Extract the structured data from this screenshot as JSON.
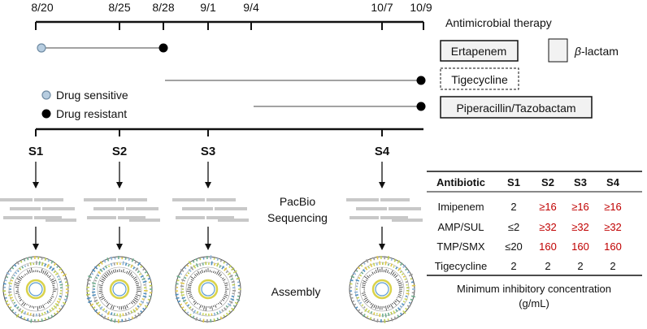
{
  "timeline": {
    "dates": [
      "8/20",
      "8/25",
      "8/28",
      "9/1",
      "9/4",
      "10/7",
      "10/9"
    ],
    "therapy_title": "Antimicrobial therapy"
  },
  "therapies": [
    {
      "name": "Ertapenem",
      "class": "beta-lactam",
      "start": "8/20",
      "end": "8/28",
      "start_status": "sensitive",
      "end_status": "resistant"
    },
    {
      "name": "Tigecycline",
      "class": "other",
      "start": "8/28",
      "end": "10/9",
      "end_status": "resistant"
    },
    {
      "name": "Piperacillin/Tazobactam",
      "class": "beta-lactam",
      "start": "9/4",
      "end": "10/9",
      "end_status": "resistant"
    }
  ],
  "legend": {
    "beta_lactam_symbol": "β",
    "beta_lactam_label": "-lactam",
    "sensitive_label": "Drug sensitive",
    "resistant_label": "Drug resistant"
  },
  "samples": [
    "S1",
    "S2",
    "S3",
    "S4"
  ],
  "steps": {
    "sequencing_line1": "PacBio",
    "sequencing_line2": "Sequencing",
    "assembly": "Assembly"
  },
  "mic_table": {
    "headers": [
      "Antibiotic",
      "S1",
      "S2",
      "S3",
      "S4"
    ],
    "rows": [
      {
        "antibiotic": "Imipenem",
        "values": [
          "2",
          "≥16",
          "≥16",
          "≥16"
        ],
        "resistant": [
          false,
          true,
          true,
          true
        ]
      },
      {
        "antibiotic": "AMP/SUL",
        "values": [
          "≤2",
          "≥32",
          "≥32",
          "≥32"
        ],
        "resistant": [
          false,
          true,
          true,
          true
        ]
      },
      {
        "antibiotic": "TMP/SMX",
        "values": [
          "≤20",
          "160",
          "160",
          "160"
        ],
        "resistant": [
          false,
          true,
          true,
          true
        ]
      },
      {
        "antibiotic": "Tigecycline",
        "values": [
          "2",
          "2",
          "2",
          "2"
        ],
        "resistant": [
          false,
          false,
          false,
          false
        ]
      }
    ],
    "caption_line1": "Minimum inhibitory concentration",
    "caption_line2": "(g/mL)"
  },
  "colors": {
    "sensitive_fill": "#b7cde0",
    "sensitive_stroke": "#6f8ba3",
    "resistant_fill": "#000000",
    "resistant_value": "#c00000",
    "box_fill": "#f2f2f2",
    "read_gray": "#c8c8c8"
  }
}
